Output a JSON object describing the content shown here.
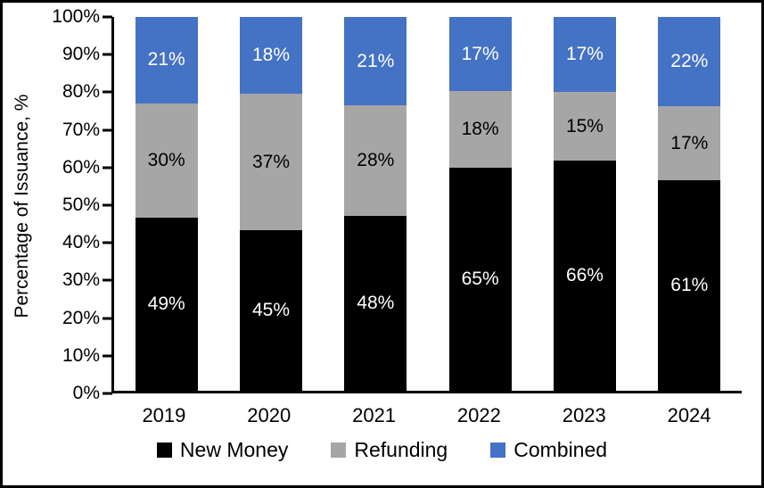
{
  "chart_data": {
    "type": "bar",
    "stacked": true,
    "title": "",
    "xlabel": "",
    "ylabel": "Percentage of Issuance, %",
    "ylim": [
      0,
      100
    ],
    "ytick_step": 10,
    "yticks": [
      "0%",
      "10%",
      "20%",
      "30%",
      "40%",
      "50%",
      "60%",
      "70%",
      "80%",
      "90%",
      "100%"
    ],
    "categories": [
      "2019",
      "2020",
      "2021",
      "2022",
      "2023",
      "2024"
    ],
    "series": [
      {
        "name": "New Money",
        "color": "#000000",
        "label_color": "#ffffff",
        "values": [
          49,
          45,
          48,
          65,
          66,
          61
        ]
      },
      {
        "name": "Refunding",
        "color": "#A6A6A6",
        "label_color": "#000000",
        "values": [
          30,
          37,
          28,
          18,
          15,
          17
        ]
      },
      {
        "name": "Combined",
        "color": "#4472C4",
        "label_color": "#ffffff",
        "values": [
          21,
          18,
          21,
          17,
          17,
          22
        ]
      }
    ],
    "value_label_suffix": "%",
    "legend_position": "bottom",
    "grid": false
  }
}
